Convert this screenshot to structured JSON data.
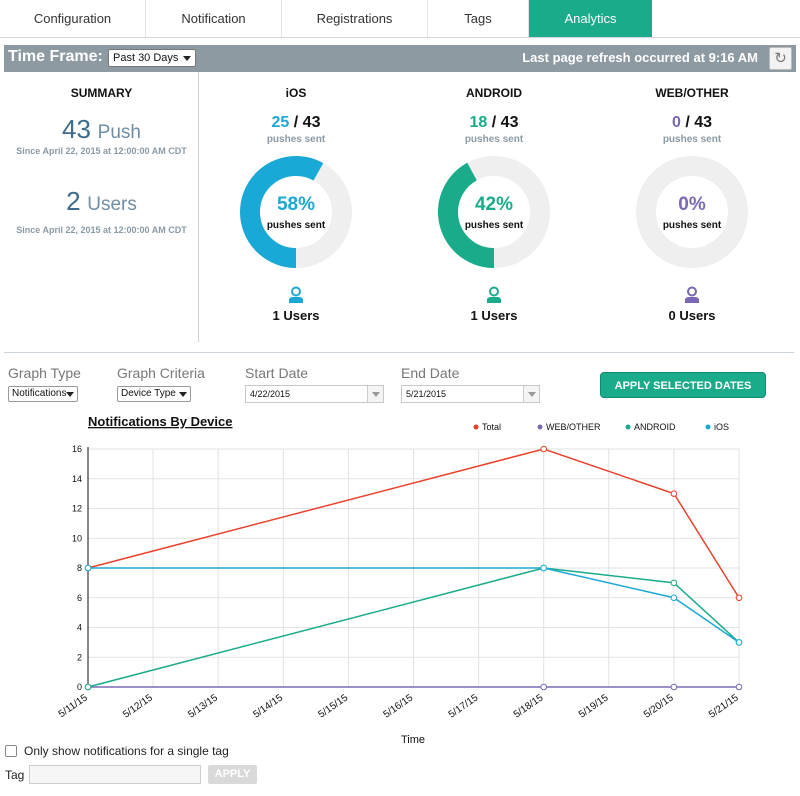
{
  "tabs": [
    {
      "label": "Configuration"
    },
    {
      "label": "Notification"
    },
    {
      "label": "Registrations"
    },
    {
      "label": "Tags"
    },
    {
      "label": "Analytics"
    }
  ],
  "timeframe": {
    "label": "Time Frame:",
    "selected": "Past 30 Days",
    "refresh_text": "Last page refresh occurred at 9:16 AM",
    "refresh_icon": "refresh-icon"
  },
  "summary": {
    "title": "SUMMARY",
    "push_count": "43",
    "push_unit": "Push",
    "push_since": "Since April 22, 2015 at 12:00:00 AM CDT",
    "users_count": "2",
    "users_unit": "Users",
    "users_since": "Since April 22, 2015 at 12:00:00 AM CDT"
  },
  "platforms": [
    {
      "title": "iOS",
      "sent": "25",
      "total": "43",
      "sub": "pushes sent",
      "percent": 58,
      "percent_label": "58%",
      "pct_sub": "pushes sent",
      "users": "1 Users",
      "color": "#1aa9d6"
    },
    {
      "title": "ANDROID",
      "sent": "18",
      "total": "43",
      "sub": "pushes sent",
      "percent": 42,
      "percent_label": "42%",
      "pct_sub": "pushes sent",
      "users": "1 Users",
      "color": "#1aab8a"
    },
    {
      "title": "WEB/OTHER",
      "sent": "0",
      "total": "43",
      "sub": "pushes sent",
      "percent": 0,
      "percent_label": "0%",
      "pct_sub": "pushes sent",
      "users": "0 Users",
      "color": "#7b68b3"
    }
  ],
  "controls": {
    "graph_type_label": "Graph Type",
    "graph_type_value": "Notifications",
    "graph_criteria_label": "Graph Criteria",
    "graph_criteria_value": "Device Type",
    "start_label": "Start Date",
    "start_value": "4/22/2015",
    "end_label": "End Date",
    "end_value": "5/21/2015",
    "apply_label": "APPLY SELECTED DATES"
  },
  "chart_data": {
    "type": "line",
    "title": "Notifications By Device",
    "xlabel": "Time",
    "ylabel": "",
    "ylim": [
      0,
      16
    ],
    "yticks": [
      0,
      2,
      4,
      6,
      8,
      10,
      12,
      14,
      16
    ],
    "xlim": [
      "5/11/15",
      "5/21/15"
    ],
    "categories": [
      "5/11/15",
      "5/12/15",
      "5/13/15",
      "5/14/15",
      "5/15/15",
      "5/16/15",
      "5/17/15",
      "5/18/15",
      "5/19/15",
      "5/20/15",
      "5/21/15"
    ],
    "legend_position": "top-right",
    "grid": true,
    "series": [
      {
        "name": "Total",
        "color": "#e8412c",
        "points": [
          [
            "5/11/15",
            8
          ],
          [
            "5/18/15",
            16
          ],
          [
            "5/20/15",
            13
          ],
          [
            "5/21/15",
            6
          ]
        ]
      },
      {
        "name": "WEB/OTHER",
        "color": "#7b68b3",
        "points": [
          [
            "5/11/15",
            0
          ],
          [
            "5/18/15",
            0
          ],
          [
            "5/20/15",
            0
          ],
          [
            "5/21/15",
            0
          ]
        ]
      },
      {
        "name": "ANDROID",
        "color": "#1aab8a",
        "points": [
          [
            "5/11/15",
            0
          ],
          [
            "5/18/15",
            8
          ],
          [
            "5/20/15",
            7
          ],
          [
            "5/21/15",
            3
          ]
        ]
      },
      {
        "name": "iOS",
        "color": "#1aa9d6",
        "points": [
          [
            "5/11/15",
            8
          ],
          [
            "5/18/15",
            8
          ],
          [
            "5/20/15",
            6
          ],
          [
            "5/21/15",
            3
          ]
        ]
      }
    ]
  },
  "footer": {
    "single_tag_label": "Only show notifications for a single tag",
    "tag_label": "Tag",
    "tag_value": "",
    "apply_label": "APPLY"
  }
}
